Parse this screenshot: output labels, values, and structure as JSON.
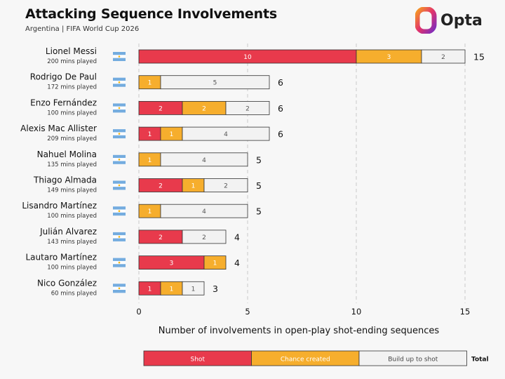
{
  "header": {
    "title": "Attacking Sequence Involvements",
    "subtitle": "Argentina | FIFA World Cup 2026",
    "brand": "Opta"
  },
  "colors": {
    "shot": "#e83a4c",
    "chance": "#f6ae2d",
    "buildup": "#f2f2f2",
    "flag_blue": "#74acdf",
    "flag_white": "#ffffff"
  },
  "chart_data": {
    "type": "bar",
    "orientation": "horizontal",
    "stacked": true,
    "xlabel": "Number of involvements in open-play shot-ending sequences",
    "xlim": [
      0,
      15
    ],
    "xticks": [
      0,
      5,
      10,
      15
    ],
    "grid": "vertical dashed",
    "legend_position": "bottom",
    "series": [
      {
        "name": "Shot",
        "key": "shot"
      },
      {
        "name": "Chance created",
        "key": "chance"
      },
      {
        "name": "Build up to shot",
        "key": "buildup"
      }
    ],
    "total_label": "Total",
    "players": [
      {
        "name": "Lionel Messi",
        "mins": "200 mins played",
        "shot": 10,
        "chance": 3,
        "buildup": 2,
        "total": 15
      },
      {
        "name": "Rodrigo De Paul",
        "mins": "172 mins played",
        "shot": 0,
        "chance": 1,
        "buildup": 5,
        "total": 6
      },
      {
        "name": "Enzo Fernández",
        "mins": "100 mins played",
        "shot": 2,
        "chance": 2,
        "buildup": 2,
        "total": 6
      },
      {
        "name": "Alexis Mac Allister",
        "mins": "209 mins played",
        "shot": 1,
        "chance": 1,
        "buildup": 4,
        "total": 6
      },
      {
        "name": "Nahuel Molina",
        "mins": "135 mins played",
        "shot": 0,
        "chance": 1,
        "buildup": 4,
        "total": 5
      },
      {
        "name": "Thiago Almada",
        "mins": "149 mins played",
        "shot": 2,
        "chance": 1,
        "buildup": 2,
        "total": 5
      },
      {
        "name": "Lisandro Martínez",
        "mins": "100 mins played",
        "shot": 0,
        "chance": 1,
        "buildup": 4,
        "total": 5
      },
      {
        "name": "Julián Alvarez",
        "mins": "143 mins played",
        "shot": 2,
        "chance": 0,
        "buildup": 2,
        "total": 4
      },
      {
        "name": "Lautaro Martínez",
        "mins": "100 mins played",
        "shot": 3,
        "chance": 1,
        "buildup": 0,
        "total": 4
      },
      {
        "name": "Nico González",
        "mins": "60 mins played",
        "shot": 1,
        "chance": 1,
        "buildup": 1,
        "total": 3
      }
    ]
  }
}
